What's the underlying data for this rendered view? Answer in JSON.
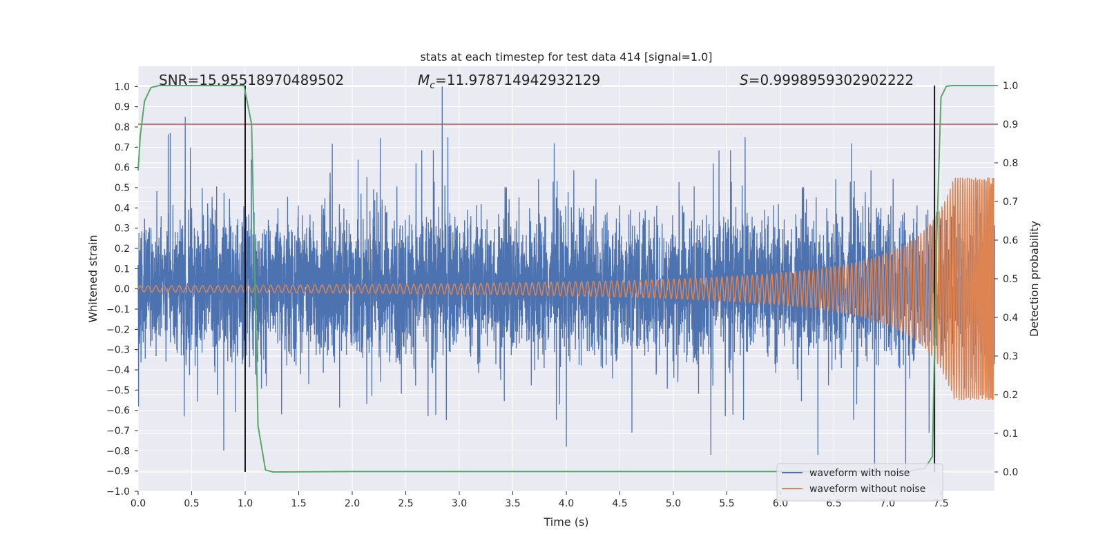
{
  "chart_data": {
    "type": "line",
    "title": "stats at each timestep for test data 414 [signal=1.0]",
    "xlabel": "Time (s)",
    "ylabel": "Whitened strain",
    "y2label": "Detection probability",
    "xlim": [
      0.0,
      8.0
    ],
    "ylim": [
      -1.0,
      1.1
    ],
    "y2lim": [
      -0.05,
      1.05
    ],
    "x_ticks": [
      "0.0",
      "0.5",
      "1.0",
      "1.5",
      "2.0",
      "2.5",
      "3.0",
      "3.5",
      "4.0",
      "4.5",
      "5.0",
      "5.5",
      "6.0",
      "6.5",
      "7.0",
      "7.5"
    ],
    "y_ticks": [
      "1.0",
      "0.9",
      "0.8",
      "0.7",
      "0.6",
      "0.5",
      "0.4",
      "0.3",
      "0.2",
      "0.1",
      "0.0",
      "−0.1",
      "−0.2",
      "−0.3",
      "−0.4",
      "−0.5",
      "−0.6",
      "−0.7",
      "−0.8",
      "−0.9",
      "−1.0"
    ],
    "y2_ticks": [
      "1.0",
      "0.9",
      "0.8",
      "0.7",
      "0.6",
      "0.5",
      "0.4",
      "0.3",
      "0.2",
      "0.1",
      "0.0"
    ],
    "grid": true,
    "legend_position": "lower right",
    "annotations": {
      "snr": "SNR=15.95518970489502",
      "mc_symbol": "M",
      "mc_sub": "c",
      "mc_value": "=11.978714942932129",
      "s_symbol": "S",
      "s_value": "=0.9998959302902222"
    },
    "series": [
      {
        "name": "waveform with noise",
        "color": "#4c72b0",
        "axis": "left",
        "description_envelope": {
          "typical_half_width": 0.32,
          "peaks": [
            [
              0.44,
              0.85
            ],
            [
              2.84,
              1.0
            ],
            [
              0.8,
              -0.8
            ],
            [
              4.0,
              -0.78
            ],
            [
              5.35,
              -0.82
            ],
            [
              6.35,
              -0.82
            ],
            [
              6.88,
              -0.92
            ],
            [
              7.17,
              -0.91
            ]
          ]
        }
      },
      {
        "name": "waveform without noise",
        "color": "#dd8452",
        "axis": "left",
        "chirp": {
          "amplitude_start": 0.015,
          "amplitude_end": 0.55,
          "merger_time": 8.0
        }
      },
      {
        "name": "detection probability",
        "color": "#55a868",
        "axis": "right",
        "x": [
          0.0,
          0.02,
          0.06,
          0.12,
          0.2,
          0.5,
          0.99,
          1.06,
          1.12,
          1.19,
          1.26,
          2.0,
          4.0,
          6.0,
          7.2,
          7.35,
          7.42,
          7.46,
          7.5,
          7.55,
          7.6,
          7.8,
          8.0
        ],
        "y": [
          0.78,
          0.87,
          0.96,
          0.995,
          1.0,
          1.0,
          1.0,
          0.9,
          0.12,
          0.005,
          0.0,
          0.001,
          0.001,
          0.001,
          0.002,
          0.01,
          0.04,
          0.6,
          0.97,
          0.998,
          1.0,
          1.0,
          1.0
        ]
      }
    ],
    "horizontal_lines": [
      {
        "axis": "right",
        "value": 0.9,
        "color": "#c44e52"
      }
    ],
    "vertical_lines": [
      {
        "x": 1.0,
        "y2_from": 0.0,
        "y2_to": 1.0,
        "color": "#000000"
      },
      {
        "x": 7.44,
        "y2_from": 0.0,
        "y2_to": 1.0,
        "color": "#000000"
      }
    ],
    "colors": {
      "background": "#eaeaf2",
      "grid": "#ffffff",
      "noise": "#4c72b0",
      "signal": "#dd8452",
      "probability": "#55a868",
      "threshold": "#c44e52"
    }
  }
}
